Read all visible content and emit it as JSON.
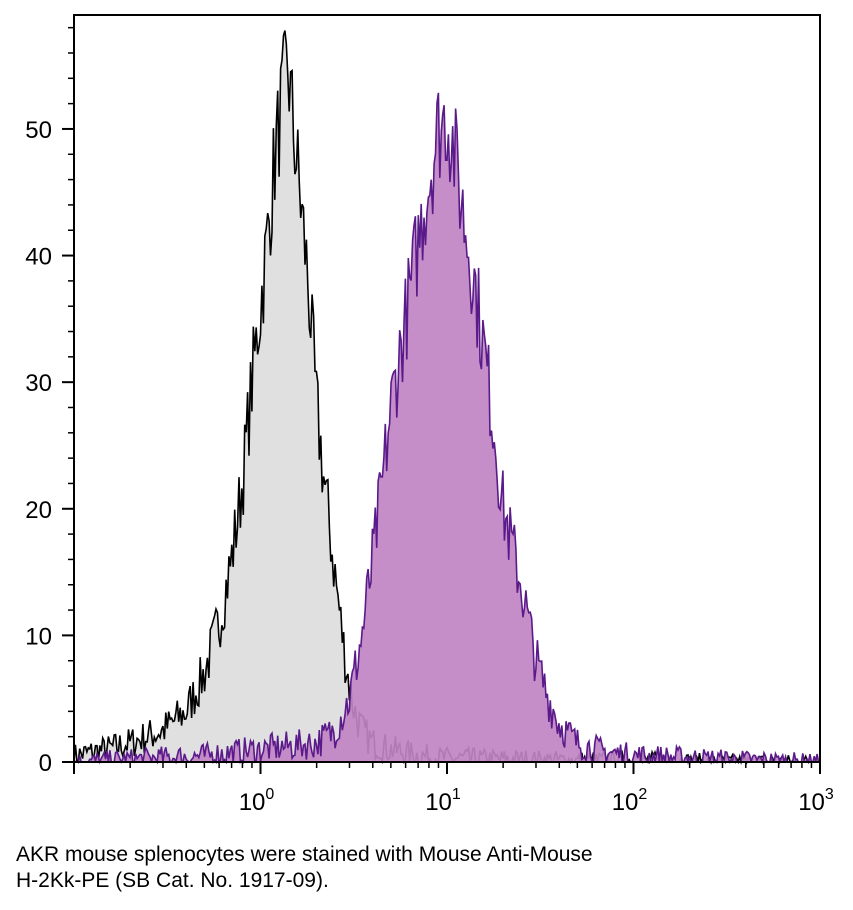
{
  "chart_data": {
    "type": "area",
    "x_scale": "log",
    "xlim": [
      0.1,
      1000
    ],
    "ylim": [
      0,
      59
    ],
    "x_ticks": [
      {
        "value": 1,
        "base": "10",
        "exp": "0"
      },
      {
        "value": 10,
        "base": "10",
        "exp": "1"
      },
      {
        "value": 100,
        "base": "10",
        "exp": "2"
      },
      {
        "value": 1000,
        "base": "10",
        "exp": "3"
      }
    ],
    "y_ticks": [
      0,
      10,
      20,
      30,
      40,
      50
    ],
    "grid": false,
    "legend": "none",
    "series": [
      {
        "fill": "#e0e0e0",
        "stroke": "#000000",
        "x": [
          0.1,
          0.15,
          0.2,
          0.3,
          0.4,
          0.5,
          0.6,
          0.7,
          0.8,
          0.9,
          1.0,
          1.1,
          1.2,
          1.3,
          1.4,
          1.5,
          1.6,
          1.8,
          2.0,
          2.2,
          2.5,
          2.8,
          3.0,
          3.2,
          3.5,
          4.0,
          5.0,
          7.0,
          10,
          20,
          50,
          100,
          300,
          1000
        ],
        "y": [
          0.5,
          1.0,
          1.5,
          2.5,
          4.0,
          7.0,
          11,
          16,
          22,
          30,
          36,
          42,
          48,
          52,
          55,
          50,
          46,
          38,
          28,
          22,
          15,
          9,
          6,
          4,
          2.5,
          1.5,
          1.0,
          0.5,
          0.3,
          0.2,
          0.1,
          0.1,
          0,
          0
        ]
      },
      {
        "fill": "#c084c4",
        "stroke": "#5a1a8a",
        "x": [
          0.1,
          0.5,
          1.0,
          2.0,
          2.5,
          3.0,
          3.5,
          4.0,
          4.5,
          5.0,
          6.0,
          7.0,
          8.0,
          9.0,
          10,
          11,
          12,
          14,
          16,
          18,
          20,
          25,
          30,
          35,
          40,
          50,
          70,
          100,
          300,
          1000
        ],
        "y": [
          0,
          0.5,
          1.0,
          1.5,
          2.5,
          5.0,
          10,
          16,
          22,
          28,
          35,
          41,
          46,
          50,
          51,
          48,
          44,
          38,
          32,
          26,
          20,
          14,
          8,
          5,
          3,
          1.5,
          0.8,
          0.5,
          0.2,
          0
        ]
      }
    ]
  },
  "caption": {
    "line1": "AKR mouse splenocytes were stained with Mouse Anti-Mouse",
    "line2": "H-2Kk-PE (SB Cat. No. 1917-09)."
  }
}
